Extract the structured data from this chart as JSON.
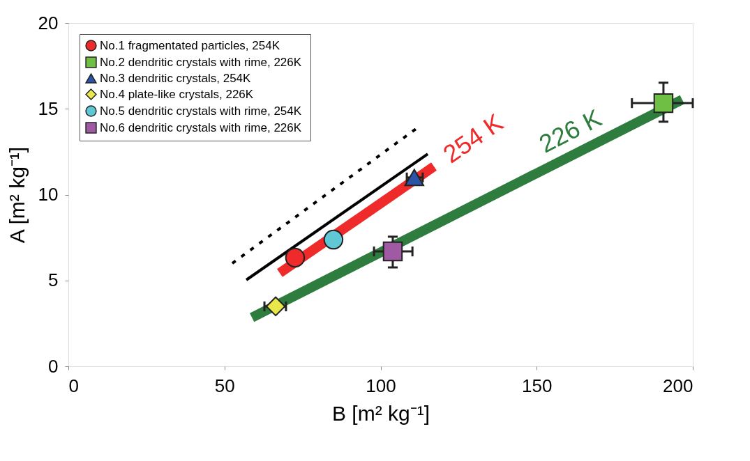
{
  "chart_data": {
    "type": "scatter",
    "xlabel": "B  [m² kg⁻¹]",
    "ylabel": "A  [m² kg⁻¹]",
    "xlim": [
      0,
      200
    ],
    "ylim": [
      0,
      20
    ],
    "xticks": [
      0,
      50,
      100,
      150,
      200
    ],
    "yticks": [
      0,
      5,
      10,
      15,
      20
    ],
    "grid": false,
    "legend": "top left",
    "series": [
      {
        "type": "line",
        "color": "#000000",
        "line_style": "dotted",
        "x": [
          52.5,
          111.3
        ],
        "values": [
          6.0,
          13.83
        ]
      },
      {
        "type": "line",
        "color": "#000000",
        "line_style": "solid",
        "x": [
          57.0,
          115.1
        ],
        "values": [
          5.03,
          12.37
        ]
      },
      {
        "type": "line",
        "color": "#ee2a2a",
        "line_style": "solid",
        "x": [
          67.7,
          117.1
        ],
        "values": [
          5.44,
          11.64
        ]
      },
      {
        "type": "line",
        "color": "#2e7d3e",
        "line_style": "solid",
        "x": [
          58.8,
          196.6
        ],
        "values": [
          2.84,
          15.54
        ]
      },
      {
        "name": "No.1  fragmentated particles, 254K",
        "color": "#ee2a2a",
        "marker": "circle",
        "x": [
          72.6
        ],
        "values": [
          6.33
        ]
      },
      {
        "name": "No.2  dendritic crystals with rime, 226K",
        "color": "#6fbf44",
        "marker": "square",
        "x": [
          190.6
        ],
        "values": [
          15.33
        ],
        "errors": [
          [
            14.25,
            16.52
          ]
        ],
        "xerrors": [
          [
            180.5,
            200
          ]
        ]
      },
      {
        "name": "No.3  dendritic crystals, 254K",
        "color": "#2a55a6",
        "marker": "triangle",
        "x": [
          110.8
        ],
        "values": [
          11.0
        ],
        "xerrors": [
          [
            108.4,
            113.5
          ]
        ]
      },
      {
        "name": "No.4  plate-like crystals, 226K",
        "color": "#e8e84a",
        "marker": "diamond",
        "x": [
          66.4
        ],
        "values": [
          3.49
        ],
        "xerrors": [
          [
            62.8,
            69.7
          ]
        ]
      },
      {
        "name": "No.5  dendritic crystals with rime, 254K",
        "color": "#5fc8d4",
        "marker": "circle",
        "x": [
          84.9
        ],
        "values": [
          7.38
        ]
      },
      {
        "name": "No.6  dendritic crystals with rime, 226K",
        "color": "#a05aa4",
        "marker": "square",
        "x": [
          103.9
        ],
        "values": [
          6.69
        ],
        "errors": [
          [
            5.76,
            7.55
          ]
        ],
        "xerrors": [
          [
            97.9,
            110.2
          ]
        ]
      }
    ],
    "annotations": [
      {
        "text": "254 K",
        "x": 117.1,
        "y": 11.64
      },
      {
        "text": "226 K",
        "x": 164,
        "y": 12.54
      }
    ]
  }
}
